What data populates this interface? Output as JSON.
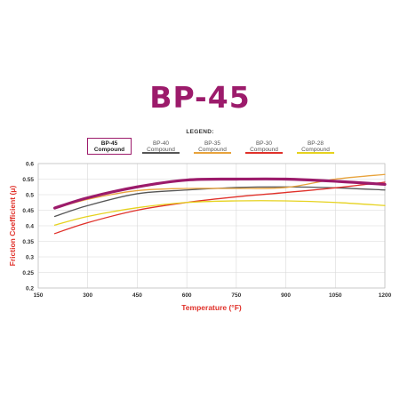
{
  "chart_data": {
    "type": "line",
    "title": "BP-45",
    "title_color": "#9c1b6b",
    "legend_heading": "LEGEND:",
    "legend_placement": "top",
    "xlabel": "Temperature (°F)",
    "ylabel": "Friction Coefficient (μ)",
    "axis_label_color": "#e0312a",
    "xlim": [
      150,
      1200
    ],
    "ylim": [
      0.2,
      0.6
    ],
    "xticks": [
      "150",
      "300",
      "450",
      "600",
      "750",
      "900",
      "1050",
      "1200"
    ],
    "yticks": [
      "0.2",
      "0.25",
      "0.3",
      "0.35",
      "0.4",
      "0.45",
      "0.5",
      "0.55",
      "0.6"
    ],
    "grid": true,
    "series": [
      {
        "name": "BP-45",
        "subname": "Compound",
        "color": "#9c1b6b",
        "selected": true,
        "x": [
          200,
          300,
          450,
          600,
          750,
          900,
          1050,
          1200
        ],
        "y": [
          0.457,
          0.49,
          0.525,
          0.547,
          0.55,
          0.55,
          0.543,
          0.533
        ]
      },
      {
        "name": "BP-40",
        "subname": "Compound",
        "color": "#555555",
        "selected": false,
        "x": [
          200,
          300,
          450,
          600,
          750,
          900,
          1050,
          1200
        ],
        "y": [
          0.43,
          0.465,
          0.503,
          0.515,
          0.523,
          0.525,
          0.522,
          0.515
        ]
      },
      {
        "name": "BP-35",
        "subname": "Compound",
        "color": "#e8a33c",
        "selected": false,
        "x": [
          200,
          300,
          450,
          600,
          750,
          900,
          1050,
          1200
        ],
        "y": [
          0.455,
          0.485,
          0.513,
          0.52,
          0.52,
          0.523,
          0.55,
          0.565
        ]
      },
      {
        "name": "BP-30",
        "subname": "Compound",
        "color": "#e0312a",
        "selected": false,
        "x": [
          200,
          300,
          450,
          600,
          750,
          900,
          1050,
          1200
        ],
        "y": [
          0.375,
          0.41,
          0.45,
          0.475,
          0.493,
          0.507,
          0.522,
          0.54
        ]
      },
      {
        "name": "BP-28",
        "subname": "Compound",
        "color": "#e6d21e",
        "selected": false,
        "x": [
          200,
          300,
          450,
          600,
          750,
          900,
          1050,
          1200
        ],
        "y": [
          0.402,
          0.43,
          0.458,
          0.475,
          0.48,
          0.48,
          0.475,
          0.465
        ]
      }
    ]
  }
}
